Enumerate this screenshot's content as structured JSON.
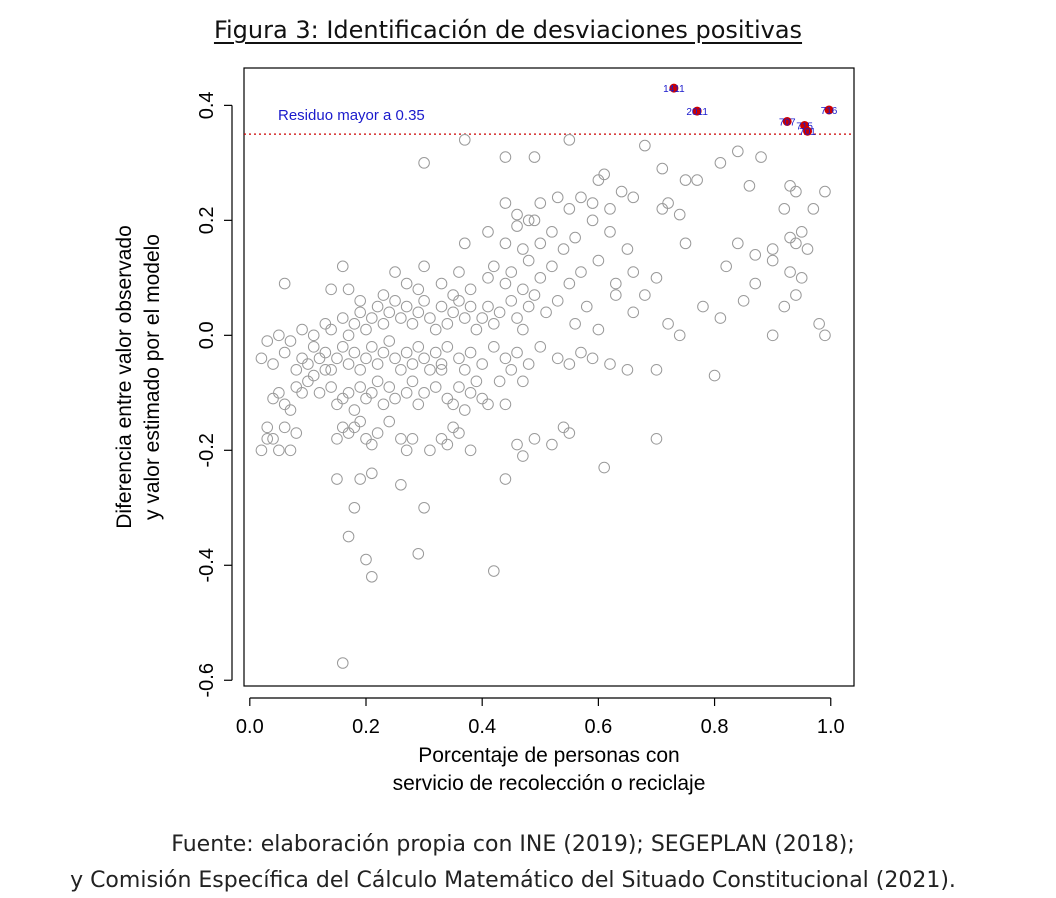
{
  "title": "Figura 3: Identificación de desviaciones positivas",
  "source_line1": "Fuente: elaboración propia con INE (2019); SEGEPLAN (2018);",
  "source_line2": "y Comisión Específica del Cálculo Matemático del Situado Constitucional (2021).",
  "chart_data": {
    "type": "scatter",
    "xlabel": [
      "Porcentaje de personas con",
      "servicio de recolección o reciclaje"
    ],
    "ylabel": [
      "Diferencia entre valor observado",
      "y valor estimado por el modelo"
    ],
    "xlim": [
      -0.01,
      1.04
    ],
    "ylim": [
      -0.61,
      0.465
    ],
    "x_ticks": [
      "0.0",
      "0.2",
      "0.4",
      "0.6",
      "0.8",
      "1.0"
    ],
    "x_tick_values": [
      0.0,
      0.2,
      0.4,
      0.6,
      0.8,
      1.0
    ],
    "y_ticks": [
      "-0.6",
      "-0.4",
      "-0.2",
      "0.0",
      "0.2",
      "0.4"
    ],
    "y_tick_values": [
      -0.6,
      -0.4,
      -0.2,
      0.0,
      0.2,
      0.4
    ],
    "threshold": {
      "value": 0.35,
      "label": "Residuo mayor a 0.35",
      "color": "#cc0000",
      "label_color": "#1a1acc"
    },
    "highlighted": [
      {
        "label": "1411",
        "x": 0.73,
        "y": 0.43
      },
      {
        "label": "2011",
        "x": 0.77,
        "y": 0.39
      },
      {
        "label": "707",
        "x": 0.925,
        "y": 0.372
      },
      {
        "label": "715",
        "x": 0.955,
        "y": 0.365
      },
      {
        "label": "701",
        "x": 0.96,
        "y": 0.355
      },
      {
        "label": "716",
        "x": 0.997,
        "y": 0.392
      }
    ],
    "points": [
      [
        0.16,
        -0.57
      ],
      [
        0.2,
        -0.39
      ],
      [
        0.21,
        -0.42
      ],
      [
        0.29,
        -0.38
      ],
      [
        0.42,
        -0.41
      ],
      [
        0.17,
        -0.35
      ],
      [
        0.18,
        -0.3
      ],
      [
        0.3,
        -0.3
      ],
      [
        0.15,
        -0.25
      ],
      [
        0.21,
        -0.24
      ],
      [
        0.26,
        -0.26
      ],
      [
        0.19,
        -0.25
      ],
      [
        0.44,
        -0.25
      ],
      [
        0.61,
        -0.23
      ],
      [
        0.02,
        -0.2
      ],
      [
        0.03,
        -0.18
      ],
      [
        0.04,
        -0.18
      ],
      [
        0.05,
        -0.2
      ],
      [
        0.07,
        -0.2
      ],
      [
        0.08,
        -0.17
      ],
      [
        0.06,
        -0.16
      ],
      [
        0.03,
        -0.16
      ],
      [
        0.15,
        -0.18
      ],
      [
        0.16,
        -0.16
      ],
      [
        0.17,
        -0.17
      ],
      [
        0.18,
        -0.16
      ],
      [
        0.19,
        -0.15
      ],
      [
        0.2,
        -0.18
      ],
      [
        0.21,
        -0.19
      ],
      [
        0.22,
        -0.17
      ],
      [
        0.24,
        -0.15
      ],
      [
        0.26,
        -0.18
      ],
      [
        0.27,
        -0.2
      ],
      [
        0.28,
        -0.18
      ],
      [
        0.31,
        -0.2
      ],
      [
        0.33,
        -0.18
      ],
      [
        0.34,
        -0.19
      ],
      [
        0.35,
        -0.16
      ],
      [
        0.36,
        -0.17
      ],
      [
        0.38,
        -0.2
      ],
      [
        0.46,
        -0.19
      ],
      [
        0.47,
        -0.21
      ],
      [
        0.49,
        -0.18
      ],
      [
        0.52,
        -0.19
      ],
      [
        0.54,
        -0.16
      ],
      [
        0.55,
        -0.17
      ],
      [
        0.7,
        -0.18
      ],
      [
        0.8,
        -0.07
      ],
      [
        0.04,
        -0.11
      ],
      [
        0.05,
        -0.1
      ],
      [
        0.06,
        -0.12
      ],
      [
        0.07,
        -0.13
      ],
      [
        0.08,
        -0.09
      ],
      [
        0.09,
        -0.1
      ],
      [
        0.1,
        -0.08
      ],
      [
        0.11,
        -0.07
      ],
      [
        0.12,
        -0.1
      ],
      [
        0.13,
        -0.06
      ],
      [
        0.14,
        -0.09
      ],
      [
        0.15,
        -0.12
      ],
      [
        0.16,
        -0.11
      ],
      [
        0.17,
        -0.1
      ],
      [
        0.18,
        -0.13
      ],
      [
        0.19,
        -0.09
      ],
      [
        0.2,
        -0.11
      ],
      [
        0.21,
        -0.1
      ],
      [
        0.22,
        -0.08
      ],
      [
        0.23,
        -0.12
      ],
      [
        0.24,
        -0.09
      ],
      [
        0.25,
        -0.11
      ],
      [
        0.27,
        -0.1
      ],
      [
        0.28,
        -0.08
      ],
      [
        0.29,
        -0.12
      ],
      [
        0.3,
        -0.1
      ],
      [
        0.32,
        -0.09
      ],
      [
        0.33,
        -0.06
      ],
      [
        0.34,
        -0.11
      ],
      [
        0.35,
        -0.12
      ],
      [
        0.36,
        -0.09
      ],
      [
        0.37,
        -0.13
      ],
      [
        0.38,
        -0.1
      ],
      [
        0.39,
        -0.08
      ],
      [
        0.4,
        -0.11
      ],
      [
        0.41,
        -0.12
      ],
      [
        0.43,
        -0.08
      ],
      [
        0.44,
        -0.12
      ],
      [
        0.45,
        -0.06
      ],
      [
        0.47,
        -0.08
      ],
      [
        0.02,
        -0.04
      ],
      [
        0.04,
        -0.05
      ],
      [
        0.06,
        -0.03
      ],
      [
        0.08,
        -0.06
      ],
      [
        0.09,
        -0.04
      ],
      [
        0.1,
        -0.05
      ],
      [
        0.11,
        -0.02
      ],
      [
        0.12,
        -0.04
      ],
      [
        0.13,
        -0.03
      ],
      [
        0.14,
        -0.06
      ],
      [
        0.15,
        -0.04
      ],
      [
        0.16,
        -0.02
      ],
      [
        0.17,
        -0.05
      ],
      [
        0.18,
        -0.03
      ],
      [
        0.19,
        -0.06
      ],
      [
        0.2,
        -0.04
      ],
      [
        0.21,
        -0.02
      ],
      [
        0.22,
        -0.05
      ],
      [
        0.23,
        -0.03
      ],
      [
        0.24,
        -0.01
      ],
      [
        0.25,
        -0.04
      ],
      [
        0.26,
        -0.06
      ],
      [
        0.27,
        -0.03
      ],
      [
        0.28,
        -0.05
      ],
      [
        0.29,
        -0.02
      ],
      [
        0.3,
        -0.04
      ],
      [
        0.31,
        -0.06
      ],
      [
        0.32,
        -0.03
      ],
      [
        0.33,
        -0.05
      ],
      [
        0.34,
        -0.02
      ],
      [
        0.36,
        -0.04
      ],
      [
        0.37,
        -0.06
      ],
      [
        0.38,
        -0.03
      ],
      [
        0.4,
        -0.05
      ],
      [
        0.42,
        -0.02
      ],
      [
        0.44,
        -0.04
      ],
      [
        0.46,
        -0.03
      ],
      [
        0.48,
        -0.05
      ],
      [
        0.5,
        -0.02
      ],
      [
        0.53,
        -0.04
      ],
      [
        0.55,
        -0.05
      ],
      [
        0.57,
        -0.03
      ],
      [
        0.59,
        -0.04
      ],
      [
        0.62,
        -0.05
      ],
      [
        0.65,
        -0.06
      ],
      [
        0.7,
        -0.06
      ],
      [
        0.03,
        -0.01
      ],
      [
        0.05,
        0.0
      ],
      [
        0.07,
        -0.01
      ],
      [
        0.09,
        0.01
      ],
      [
        0.11,
        0.0
      ],
      [
        0.13,
        0.02
      ],
      [
        0.14,
        0.01
      ],
      [
        0.16,
        0.03
      ],
      [
        0.17,
        0.0
      ],
      [
        0.18,
        0.02
      ],
      [
        0.19,
        0.04
      ],
      [
        0.2,
        0.01
      ],
      [
        0.21,
        0.03
      ],
      [
        0.22,
        0.05
      ],
      [
        0.23,
        0.02
      ],
      [
        0.24,
        0.04
      ],
      [
        0.25,
        0.06
      ],
      [
        0.26,
        0.03
      ],
      [
        0.27,
        0.05
      ],
      [
        0.28,
        0.02
      ],
      [
        0.29,
        0.04
      ],
      [
        0.3,
        0.06
      ],
      [
        0.31,
        0.03
      ],
      [
        0.32,
        0.01
      ],
      [
        0.33,
        0.05
      ],
      [
        0.34,
        0.02
      ],
      [
        0.35,
        0.04
      ],
      [
        0.36,
        0.06
      ],
      [
        0.37,
        0.03
      ],
      [
        0.38,
        0.05
      ],
      [
        0.39,
        0.01
      ],
      [
        0.4,
        0.03
      ],
      [
        0.41,
        0.05
      ],
      [
        0.42,
        0.02
      ],
      [
        0.43,
        0.04
      ],
      [
        0.45,
        0.06
      ],
      [
        0.46,
        0.03
      ],
      [
        0.47,
        0.01
      ],
      [
        0.48,
        0.05
      ],
      [
        0.49,
        0.07
      ],
      [
        0.51,
        0.04
      ],
      [
        0.53,
        0.06
      ],
      [
        0.56,
        0.02
      ],
      [
        0.58,
        0.05
      ],
      [
        0.6,
        0.01
      ],
      [
        0.63,
        0.07
      ],
      [
        0.66,
        0.04
      ],
      [
        0.68,
        0.07
      ],
      [
        0.72,
        0.02
      ],
      [
        0.74,
        0.0
      ],
      [
        0.78,
        0.05
      ],
      [
        0.81,
        0.03
      ],
      [
        0.85,
        0.06
      ],
      [
        0.9,
        0.0
      ],
      [
        0.92,
        0.05
      ],
      [
        0.94,
        0.07
      ],
      [
        0.98,
        0.02
      ],
      [
        0.99,
        0.0
      ],
      [
        0.06,
        0.09
      ],
      [
        0.14,
        0.08
      ],
      [
        0.16,
        0.12
      ],
      [
        0.17,
        0.08
      ],
      [
        0.19,
        0.06
      ],
      [
        0.23,
        0.07
      ],
      [
        0.25,
        0.11
      ],
      [
        0.27,
        0.09
      ],
      [
        0.29,
        0.08
      ],
      [
        0.3,
        0.12
      ],
      [
        0.33,
        0.09
      ],
      [
        0.35,
        0.07
      ],
      [
        0.36,
        0.11
      ],
      [
        0.38,
        0.08
      ],
      [
        0.41,
        0.1
      ],
      [
        0.42,
        0.12
      ],
      [
        0.44,
        0.09
      ],
      [
        0.45,
        0.11
      ],
      [
        0.47,
        0.08
      ],
      [
        0.48,
        0.13
      ],
      [
        0.5,
        0.1
      ],
      [
        0.52,
        0.12
      ],
      [
        0.55,
        0.09
      ],
      [
        0.57,
        0.11
      ],
      [
        0.6,
        0.13
      ],
      [
        0.63,
        0.09
      ],
      [
        0.66,
        0.11
      ],
      [
        0.7,
        0.1
      ],
      [
        0.82,
        0.12
      ],
      [
        0.87,
        0.09
      ],
      [
        0.9,
        0.13
      ],
      [
        0.93,
        0.11
      ],
      [
        0.95,
        0.1
      ],
      [
        0.37,
        0.16
      ],
      [
        0.41,
        0.18
      ],
      [
        0.44,
        0.16
      ],
      [
        0.46,
        0.19
      ],
      [
        0.47,
        0.15
      ],
      [
        0.49,
        0.2
      ],
      [
        0.5,
        0.16
      ],
      [
        0.52,
        0.18
      ],
      [
        0.54,
        0.15
      ],
      [
        0.56,
        0.17
      ],
      [
        0.59,
        0.2
      ],
      [
        0.62,
        0.18
      ],
      [
        0.65,
        0.15
      ],
      [
        0.75,
        0.16
      ],
      [
        0.84,
        0.16
      ],
      [
        0.87,
        0.14
      ],
      [
        0.9,
        0.15
      ],
      [
        0.93,
        0.17
      ],
      [
        0.94,
        0.16
      ],
      [
        0.95,
        0.18
      ],
      [
        0.96,
        0.15
      ],
      [
        0.44,
        0.23
      ],
      [
        0.46,
        0.21
      ],
      [
        0.48,
        0.2
      ],
      [
        0.5,
        0.23
      ],
      [
        0.53,
        0.24
      ],
      [
        0.55,
        0.22
      ],
      [
        0.57,
        0.24
      ],
      [
        0.59,
        0.23
      ],
      [
        0.62,
        0.22
      ],
      [
        0.64,
        0.25
      ],
      [
        0.66,
        0.24
      ],
      [
        0.71,
        0.22
      ],
      [
        0.72,
        0.23
      ],
      [
        0.74,
        0.21
      ],
      [
        0.77,
        0.27
      ],
      [
        0.81,
        0.3
      ],
      [
        0.84,
        0.32
      ],
      [
        0.86,
        0.26
      ],
      [
        0.88,
        0.31
      ],
      [
        0.92,
        0.22
      ],
      [
        0.93,
        0.26
      ],
      [
        0.94,
        0.25
      ],
      [
        0.97,
        0.22
      ],
      [
        0.99,
        0.25
      ],
      [
        0.3,
        0.3
      ],
      [
        0.37,
        0.34
      ],
      [
        0.44,
        0.31
      ],
      [
        0.49,
        0.31
      ],
      [
        0.55,
        0.34
      ],
      [
        0.6,
        0.27
      ],
      [
        0.61,
        0.28
      ],
      [
        0.68,
        0.33
      ],
      [
        0.71,
        0.29
      ],
      [
        0.75,
        0.27
      ]
    ]
  }
}
